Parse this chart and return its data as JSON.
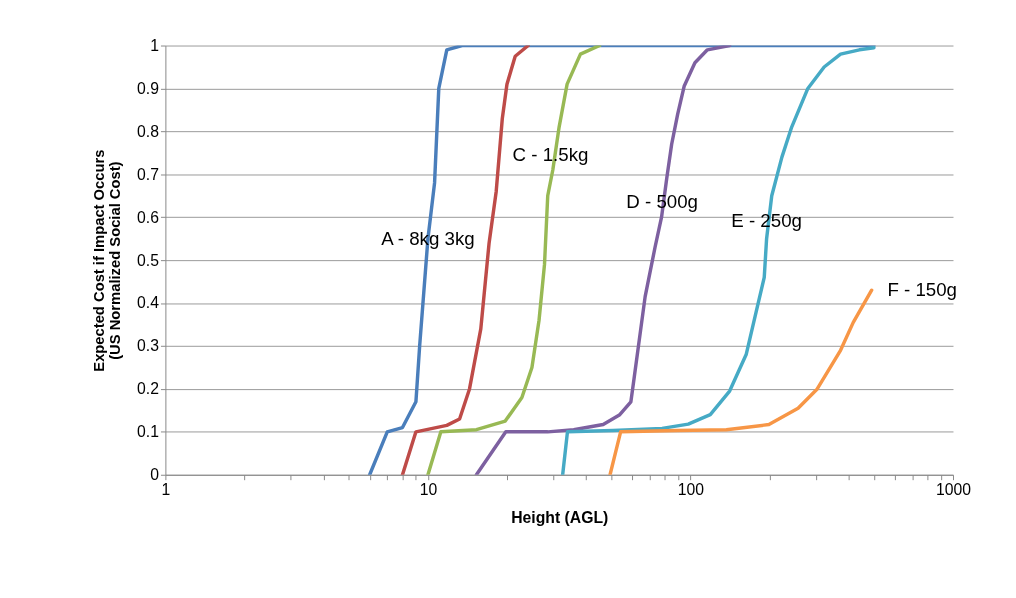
{
  "chart_data": {
    "type": "line",
    "xlabel": "Height (AGL)",
    "ylabel": "Expected Cost if Impact Occurs\n(US Normalized Social Cost)",
    "log": "x",
    "grid": "y",
    "marker": "none",
    "line_style": "solid",
    "xlim": [
      1,
      1000
    ],
    "xticks": [
      1,
      {
        "value": 2,
        "label": null
      },
      {
        "value": 3,
        "label": null
      },
      {
        "value": 4,
        "label": null
      },
      {
        "value": 5,
        "label": null
      },
      {
        "value": 6,
        "label": null
      },
      {
        "value": 7,
        "label": null
      },
      {
        "value": 8,
        "label": null
      },
      {
        "value": 9,
        "label": null
      },
      10,
      {
        "value": 20,
        "label": null
      },
      {
        "value": 30,
        "label": null
      },
      {
        "value": 40,
        "label": null
      },
      {
        "value": 50,
        "label": null
      },
      {
        "value": 60,
        "label": null
      },
      {
        "value": 70,
        "label": null
      },
      {
        "value": 80,
        "label": null
      },
      {
        "value": 90,
        "label": null
      },
      100,
      {
        "value": 200,
        "label": null
      },
      {
        "value": 300,
        "label": null
      },
      {
        "value": 400,
        "label": null
      },
      {
        "value": 500,
        "label": null
      },
      {
        "value": 600,
        "label": null
      },
      {
        "value": 700,
        "label": null
      },
      {
        "value": 800,
        "label": null
      },
      {
        "value": 900,
        "label": null
      },
      1000
    ],
    "ylim": [
      0,
      1
    ],
    "yticks": [
      0,
      0.1,
      0.2,
      0.3,
      0.4,
      0.5,
      0.6,
      0.7,
      0.8,
      0.9,
      1
    ],
    "series": [
      {
        "color": "#4a7ebb",
        "x": [
          6,
          7,
          8,
          9,
          9.3,
          10,
          10.6,
          11,
          11.8,
          13.5,
          500
        ],
        "values": [
          0,
          0.1,
          0.11,
          0.17,
          0.3,
          0.55,
          0.68,
          0.9,
          0.99,
          1,
          1
        ]
      },
      {
        "color": "#be4b48",
        "x": [
          8,
          9,
          11.8,
          13.2,
          14.4,
          15.9,
          17.1,
          18.2,
          19.2,
          20,
          21.5,
          24.1
        ],
        "values": [
          0,
          0.1,
          0.115,
          0.13,
          0.2,
          0.34,
          0.54,
          0.66,
          0.83,
          0.91,
          0.975,
          1
        ]
      },
      {
        "color": "#98b954",
        "x": [
          10,
          11.2,
          15.3,
          19.7,
          22.8,
          24.9,
          26.5,
          27.8,
          28.6,
          29.9,
          31.6,
          33.9,
          38.1,
          45.1
        ],
        "values": [
          0,
          0.1,
          0.105,
          0.125,
          0.18,
          0.25,
          0.36,
          0.49,
          0.65,
          0.71,
          0.81,
          0.91,
          0.98,
          1
        ]
      },
      {
        "color": "#7d60a0",
        "x": [
          15.3,
          19.8,
          28.6,
          35.9,
          46.5,
          53.8,
          59.3,
          61,
          67.2,
          73.3,
          77.6,
          81.2,
          84.8,
          89.4,
          94.6,
          104,
          116,
          141
        ],
        "values": [
          0,
          0.1,
          0.1,
          0.105,
          0.117,
          0.14,
          0.17,
          0.225,
          0.415,
          0.53,
          0.6,
          0.69,
          0.77,
          0.84,
          0.905,
          0.96,
          0.99,
          1
        ]
      },
      {
        "color": "#46aac5",
        "x": [
          32.6,
          34,
          50.7,
          78,
          98.1,
          119,
          141,
          163,
          178,
          191,
          195,
          204,
          223,
          243,
          280,
          323,
          373,
          440,
          500
        ],
        "values": [
          0,
          0.1,
          0.103,
          0.108,
          0.118,
          0.14,
          0.195,
          0.28,
          0.38,
          0.46,
          0.55,
          0.65,
          0.74,
          0.81,
          0.9,
          0.95,
          0.98,
          0.99,
          0.995
        ]
      },
      {
        "color": "#f79646",
        "x": [
          49.4,
          54.2,
          89.5,
          137,
          199,
          257,
          304,
          373,
          417,
          490
        ],
        "values": [
          0,
          0.1,
          0.103,
          0.105,
          0.117,
          0.155,
          0.2,
          0.29,
          0.355,
          0.43
        ]
      }
    ],
    "annotations": [
      {
        "text": "A - 8kg 3kg",
        "x": 10,
        "y": 0.55
      },
      {
        "text": "C - 1.5kg",
        "x": 29.3,
        "y": 0.745
      },
      {
        "text": "D - 500g",
        "x": 78,
        "y": 0.635
      },
      {
        "text": "E - 250g",
        "x": 195,
        "y": 0.59
      },
      {
        "text": "F - 150g",
        "x": 490,
        "y": 0.43
      }
    ]
  }
}
